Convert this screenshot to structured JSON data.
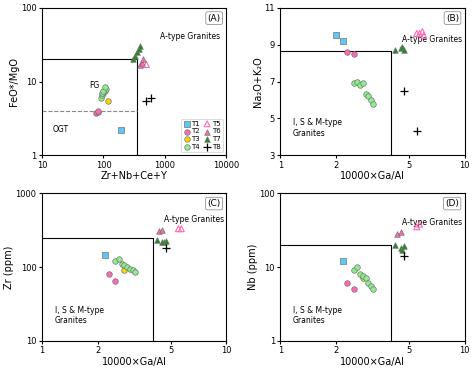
{
  "chart_data": [
    {
      "type": "scatter",
      "title": "(A)",
      "xlabel": "Zr+Nb+Ce+Y",
      "ylabel": "FeO*/MgO",
      "log": true,
      "xlim": [
        10,
        10000
      ],
      "ylim": [
        1,
        100
      ],
      "xticks": [
        10,
        100,
        1000,
        10000
      ],
      "yticks": [
        1,
        10,
        100
      ],
      "legend": "lower right",
      "series": [
        {
          "type": "line",
          "x": [
            10,
            350,
            350
          ],
          "y": [
            20,
            20,
            1
          ],
          "color": "black",
          "line_style": "solid"
        },
        {
          "type": "line",
          "x": [
            10,
            350
          ],
          "y": [
            4.0,
            4.0
          ],
          "color": "#888888",
          "line_style": "dashed"
        },
        {
          "name": "T1",
          "x": [
            190
          ],
          "y": [
            2.2
          ],
          "color": "#5bc8f5",
          "marker": "square"
        },
        {
          "name": "T2",
          "x": [
            75,
            80,
            82
          ],
          "y": [
            3.8,
            3.9,
            4.0
          ],
          "color": "#ff69b4",
          "marker": "circle"
        },
        {
          "name": "T3",
          "x": [
            120
          ],
          "y": [
            5.5
          ],
          "color": "#ffd700",
          "marker": "circle"
        },
        {
          "name": "T4",
          "x": [
            90,
            95,
            100,
            105,
            110,
            95,
            100,
            105
          ],
          "y": [
            6.0,
            6.5,
            7.0,
            7.5,
            8.0,
            7.0,
            7.5,
            8.5
          ],
          "color": "#90ee90",
          "marker": "circle"
        },
        {
          "name": "T5",
          "x": [
            500
          ],
          "y": [
            17.0
          ],
          "color": "#ff69b4",
          "marker": "open_triangle"
        },
        {
          "name": "T6",
          "x": [
            400,
            420,
            440
          ],
          "y": [
            17.0,
            18.0,
            20.0
          ],
          "color": "#ff69b4",
          "marker": "triangle"
        },
        {
          "name": "T7",
          "x": [
            300,
            320,
            350,
            380,
            400
          ],
          "y": [
            20.0,
            22.0,
            25.0,
            28.0,
            30.0
          ],
          "color": "#228b22",
          "marker": "triangle"
        },
        {
          "name": "T8",
          "x": [
            500,
            600
          ],
          "y": [
            5.5,
            6.0
          ],
          "color": "black",
          "marker": "plus"
        }
      ],
      "annotations": [
        {
          "text": "FG",
          "x": 55,
          "y": 7
        },
        {
          "text": "OGT",
          "x": 14,
          "y": 1.8
        },
        {
          "text": "A-type Granites",
          "x": 800,
          "y": 32
        }
      ]
    },
    {
      "type": "scatter",
      "title": "(B)",
      "xlabel": "10000×Ga/Al",
      "ylabel": "Na₂O+K₂O",
      "log": "x",
      "xlim": [
        1,
        10
      ],
      "ylim": [
        3,
        11
      ],
      "xticks": [
        1,
        2,
        5,
        10
      ],
      "yticks": [
        3,
        5,
        7,
        9,
        11
      ],
      "series": [
        {
          "type": "line",
          "x": [
            1,
            4.0,
            4.0
          ],
          "y": [
            8.65,
            8.65,
            3
          ],
          "color": "black",
          "line_style": "solid"
        },
        {
          "name": "T1",
          "x": [
            2.0,
            2.2
          ],
          "y": [
            9.5,
            9.2
          ],
          "color": "#5bc8f5",
          "marker": "square"
        },
        {
          "name": "T2",
          "x": [
            2.3,
            2.5
          ],
          "y": [
            8.6,
            8.5
          ],
          "color": "#ff69b4",
          "marker": "circle"
        },
        {
          "name": "T4",
          "x": [
            2.5,
            2.6,
            2.7,
            2.8,
            2.9,
            3.0,
            3.1,
            3.2
          ],
          "y": [
            6.9,
            7.0,
            6.8,
            6.9,
            6.3,
            6.2,
            6.0,
            5.8
          ],
          "color": "#90ee90",
          "marker": "circle"
        },
        {
          "name": "T5",
          "x": [
            5.5,
            5.7,
            5.9,
            6.0
          ],
          "y": [
            9.6,
            9.6,
            9.7,
            9.5
          ],
          "color": "#ff69b4",
          "marker": "open_triangle"
        },
        {
          "name": "T7",
          "x": [
            4.2,
            4.5,
            4.6,
            4.7
          ],
          "y": [
            8.7,
            8.8,
            8.85,
            8.7
          ],
          "color": "#228b22",
          "marker": "triangle"
        },
        {
          "name": "T8",
          "x": [
            4.7,
            5.5
          ],
          "y": [
            6.5,
            4.3
          ],
          "color": "black",
          "marker": "plus"
        }
      ],
      "annotations": [
        {
          "text": "I, S & M-type\nGranites",
          "x": 1.15,
          "y": 3.8
        },
        {
          "text": "A-type Granites",
          "x": 4.5,
          "y": 8.9
        }
      ]
    },
    {
      "type": "scatter",
      "title": "(C)",
      "xlabel": "10000×Ga/Al",
      "ylabel": "Zr (ppm)",
      "log": true,
      "xlim": [
        1,
        10
      ],
      "ylim": [
        10,
        1000
      ],
      "xticks": [
        1,
        2,
        5,
        10
      ],
      "yticks": [
        10,
        100,
        1000
      ],
      "series": [
        {
          "type": "line",
          "x": [
            1,
            4.0,
            4.0
          ],
          "y": [
            250,
            250,
            10
          ],
          "color": "black",
          "line_style": "solid"
        },
        {
          "name": "T1",
          "x": [
            2.2
          ],
          "y": [
            145
          ],
          "color": "#5bc8f5",
          "marker": "square"
        },
        {
          "name": "T2",
          "x": [
            2.3,
            2.5
          ],
          "y": [
            80,
            65
          ],
          "color": "#ff69b4",
          "marker": "circle"
        },
        {
          "name": "T3",
          "x": [
            2.8
          ],
          "y": [
            90
          ],
          "color": "#ffd700",
          "marker": "circle"
        },
        {
          "name": "T4",
          "x": [
            2.5,
            2.6,
            2.7,
            2.8,
            2.9,
            3.0,
            3.1,
            3.2
          ],
          "y": [
            120,
            130,
            110,
            105,
            100,
            95,
            90,
            85
          ],
          "color": "#90ee90",
          "marker": "circle"
        },
        {
          "name": "T5",
          "x": [
            5.5,
            5.7
          ],
          "y": [
            330,
            330
          ],
          "color": "#ff69b4",
          "marker": "open_triangle"
        },
        {
          "name": "T6",
          "x": [
            4.3,
            4.5
          ],
          "y": [
            310,
            320
          ],
          "color": "#ff69b4",
          "marker": "triangle"
        },
        {
          "name": "T7",
          "x": [
            4.2,
            4.5,
            4.6,
            4.7
          ],
          "y": [
            235,
            220,
            215,
            225
          ],
          "color": "#228b22",
          "marker": "triangle"
        },
        {
          "name": "T8",
          "x": [
            4.7
          ],
          "y": [
            180
          ],
          "color": "black",
          "marker": "plus"
        }
      ],
      "annotations": [
        {
          "text": "I, S & M-type\nGranites",
          "x": 1.15,
          "y": 15
        },
        {
          "text": "A-type Granites",
          "x": 4.5,
          "y": 350
        }
      ]
    },
    {
      "type": "scatter",
      "title": "(D)",
      "xlabel": "10000×Ga/Al",
      "ylabel": "Nb (ppm)",
      "log": true,
      "xlim": [
        1,
        10
      ],
      "ylim": [
        1,
        100
      ],
      "xticks": [
        1,
        2,
        5,
        10
      ],
      "yticks": [
        1,
        10,
        100
      ],
      "series": [
        {
          "type": "line",
          "x": [
            1,
            4.0,
            4.0
          ],
          "y": [
            20,
            20,
            1
          ],
          "color": "black",
          "line_style": "solid"
        },
        {
          "name": "T1",
          "x": [
            2.2
          ],
          "y": [
            12
          ],
          "color": "#5bc8f5",
          "marker": "square"
        },
        {
          "name": "T2",
          "x": [
            2.3,
            2.5
          ],
          "y": [
            6.0,
            5.0
          ],
          "color": "#ff69b4",
          "marker": "circle"
        },
        {
          "name": "T3",
          "x": [
            2.8
          ],
          "y": [
            7.0
          ],
          "color": "#ffd700",
          "marker": "circle"
        },
        {
          "name": "T4",
          "x": [
            2.5,
            2.6,
            2.7,
            2.8,
            2.9,
            3.0,
            3.1,
            3.2
          ],
          "y": [
            9.0,
            10.0,
            8.0,
            7.5,
            7.0,
            6.0,
            5.5,
            5.0
          ],
          "color": "#90ee90",
          "marker": "circle"
        },
        {
          "name": "T5",
          "x": [
            5.5,
            5.7
          ],
          "y": [
            35.0,
            38.0
          ],
          "color": "#ff69b4",
          "marker": "open_triangle"
        },
        {
          "name": "T6",
          "x": [
            4.3,
            4.5
          ],
          "y": [
            28.0,
            30.0
          ],
          "color": "#ff69b4",
          "marker": "triangle"
        },
        {
          "name": "T7",
          "x": [
            4.2,
            4.5,
            4.6,
            4.7
          ],
          "y": [
            20.0,
            18.0,
            17.0,
            19.0
          ],
          "color": "#228b22",
          "marker": "triangle"
        },
        {
          "name": "T8",
          "x": [
            4.7
          ],
          "y": [
            14.0
          ],
          "color": "black",
          "marker": "plus"
        }
      ],
      "annotations": [
        {
          "text": "I, S & M-type\nGranites",
          "x": 1.15,
          "y": 1.5
        },
        {
          "text": "A-type Granites",
          "x": 4.5,
          "y": 32
        }
      ]
    }
  ]
}
